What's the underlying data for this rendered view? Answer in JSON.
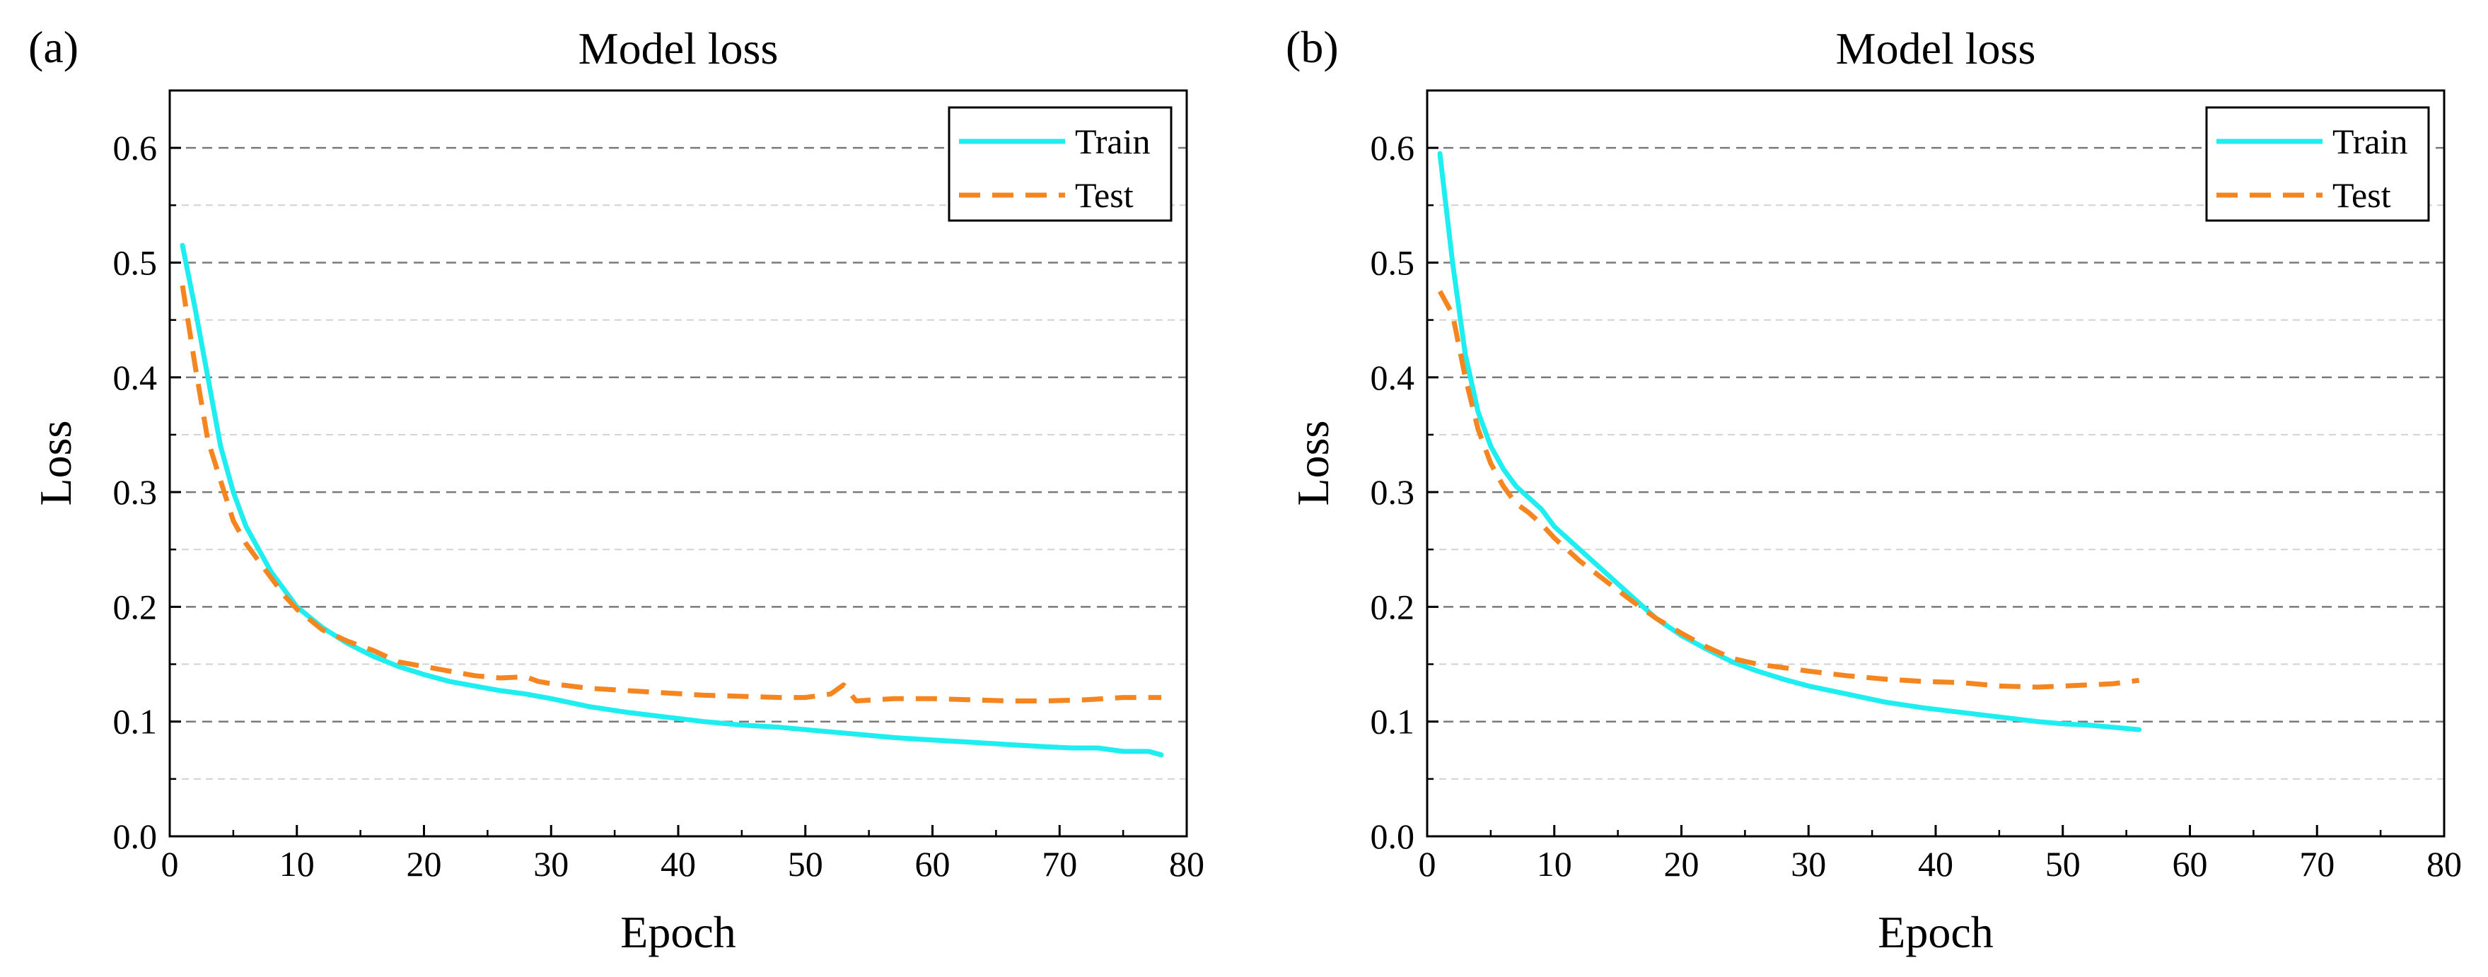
{
  "colors": {
    "train": "#1EEEF0",
    "test": "#F5861F",
    "major_grid": "#7a7a7a",
    "minor_grid": "#d2d2d2",
    "axis": "#000000"
  },
  "chart_data": [
    {
      "type": "line",
      "panel_label": "(a)",
      "title": "Model loss",
      "xlabel": "Epoch",
      "ylabel": "Loss",
      "xlim": [
        0,
        80
      ],
      "ylim": [
        0,
        0.65
      ],
      "xticks": [
        0,
        10,
        20,
        30,
        40,
        50,
        60,
        70,
        80
      ],
      "xtick_labels": [
        "0",
        "10",
        "20",
        "30",
        "40",
        "50",
        "60",
        "70",
        "80"
      ],
      "yticks": [
        0.0,
        0.1,
        0.2,
        0.3,
        0.4,
        0.5,
        0.6
      ],
      "ytick_labels": [
        "0.0",
        "0.1",
        "0.2",
        "0.3",
        "0.4",
        "0.5",
        "0.6"
      ],
      "grid": "horizontal, dashed",
      "legend_position": "top-right",
      "series": [
        {
          "name": "Train",
          "style": "solid",
          "color": "#1EEEF0",
          "x": [
            1,
            2,
            3,
            4,
            5,
            6,
            7,
            8,
            9,
            10,
            12,
            14,
            16,
            18,
            20,
            22,
            24,
            26,
            28,
            30,
            33,
            36,
            39,
            42,
            45,
            48,
            51,
            54,
            57,
            60,
            63,
            66,
            69,
            71,
            73,
            75,
            77,
            78
          ],
          "y": [
            0.515,
            0.46,
            0.4,
            0.34,
            0.3,
            0.27,
            0.25,
            0.23,
            0.215,
            0.2,
            0.182,
            0.168,
            0.157,
            0.148,
            0.141,
            0.135,
            0.131,
            0.127,
            0.124,
            0.12,
            0.113,
            0.108,
            0.104,
            0.1,
            0.097,
            0.095,
            0.092,
            0.089,
            0.086,
            0.084,
            0.082,
            0.08,
            0.078,
            0.077,
            0.077,
            0.074,
            0.074,
            0.071
          ]
        },
        {
          "name": "Test",
          "style": "dashed",
          "color": "#F5861F",
          "x": [
            1,
            2,
            3,
            4,
            5,
            6,
            7,
            8,
            9,
            10,
            12,
            14,
            16,
            18,
            20,
            22,
            24,
            26,
            28,
            29,
            30,
            33,
            36,
            39,
            42,
            45,
            48,
            50,
            52,
            53,
            54,
            57,
            60,
            63,
            66,
            69,
            72,
            75,
            78
          ],
          "y": [
            0.48,
            0.41,
            0.345,
            0.31,
            0.275,
            0.255,
            0.24,
            0.225,
            0.21,
            0.198,
            0.18,
            0.17,
            0.162,
            0.152,
            0.148,
            0.144,
            0.14,
            0.138,
            0.139,
            0.135,
            0.133,
            0.129,
            0.127,
            0.125,
            0.123,
            0.122,
            0.121,
            0.121,
            0.124,
            0.132,
            0.118,
            0.12,
            0.12,
            0.119,
            0.118,
            0.118,
            0.119,
            0.121,
            0.121
          ]
        }
      ]
    },
    {
      "type": "line",
      "panel_label": "(b)",
      "title": "Model loss",
      "xlabel": "Epoch",
      "ylabel": "Loss",
      "xlim": [
        0,
        80
      ],
      "ylim": [
        0,
        0.65
      ],
      "xticks": [
        0,
        10,
        20,
        30,
        40,
        50,
        60,
        70,
        80
      ],
      "xtick_labels": [
        "0",
        "10",
        "20",
        "30",
        "40",
        "50",
        "60",
        "70",
        "80"
      ],
      "yticks": [
        0.0,
        0.1,
        0.2,
        0.3,
        0.4,
        0.5,
        0.6
      ],
      "ytick_labels": [
        "0.0",
        "0.1",
        "0.2",
        "0.3",
        "0.4",
        "0.5",
        "0.6"
      ],
      "grid": "horizontal, dashed",
      "legend_position": "top-right",
      "series": [
        {
          "name": "Train",
          "style": "solid",
          "color": "#1EEEF0",
          "x": [
            1,
            2,
            3,
            4,
            5,
            6,
            7,
            8,
            9,
            10,
            12,
            14,
            16,
            18,
            20,
            22,
            24,
            26,
            28,
            30,
            33,
            36,
            39,
            42,
            45,
            48,
            50,
            52,
            54,
            56
          ],
          "y": [
            0.595,
            0.5,
            0.42,
            0.37,
            0.34,
            0.32,
            0.305,
            0.295,
            0.285,
            0.27,
            0.25,
            0.23,
            0.21,
            0.19,
            0.175,
            0.163,
            0.152,
            0.144,
            0.137,
            0.131,
            0.124,
            0.117,
            0.112,
            0.108,
            0.104,
            0.1,
            0.098,
            0.097,
            0.095,
            0.093
          ]
        },
        {
          "name": "Test",
          "style": "dashed",
          "color": "#F5861F",
          "x": [
            1,
            2,
            3,
            4,
            5,
            6,
            7,
            8,
            9,
            10,
            12,
            14,
            16,
            18,
            20,
            22,
            24,
            26,
            28,
            30,
            33,
            36,
            39,
            42,
            45,
            48,
            50,
            52,
            54,
            56
          ],
          "y": [
            0.475,
            0.455,
            0.4,
            0.355,
            0.325,
            0.305,
            0.29,
            0.282,
            0.272,
            0.26,
            0.24,
            0.223,
            0.206,
            0.19,
            0.177,
            0.165,
            0.155,
            0.15,
            0.147,
            0.144,
            0.14,
            0.137,
            0.135,
            0.134,
            0.131,
            0.13,
            0.131,
            0.132,
            0.133,
            0.136
          ]
        }
      ]
    }
  ]
}
